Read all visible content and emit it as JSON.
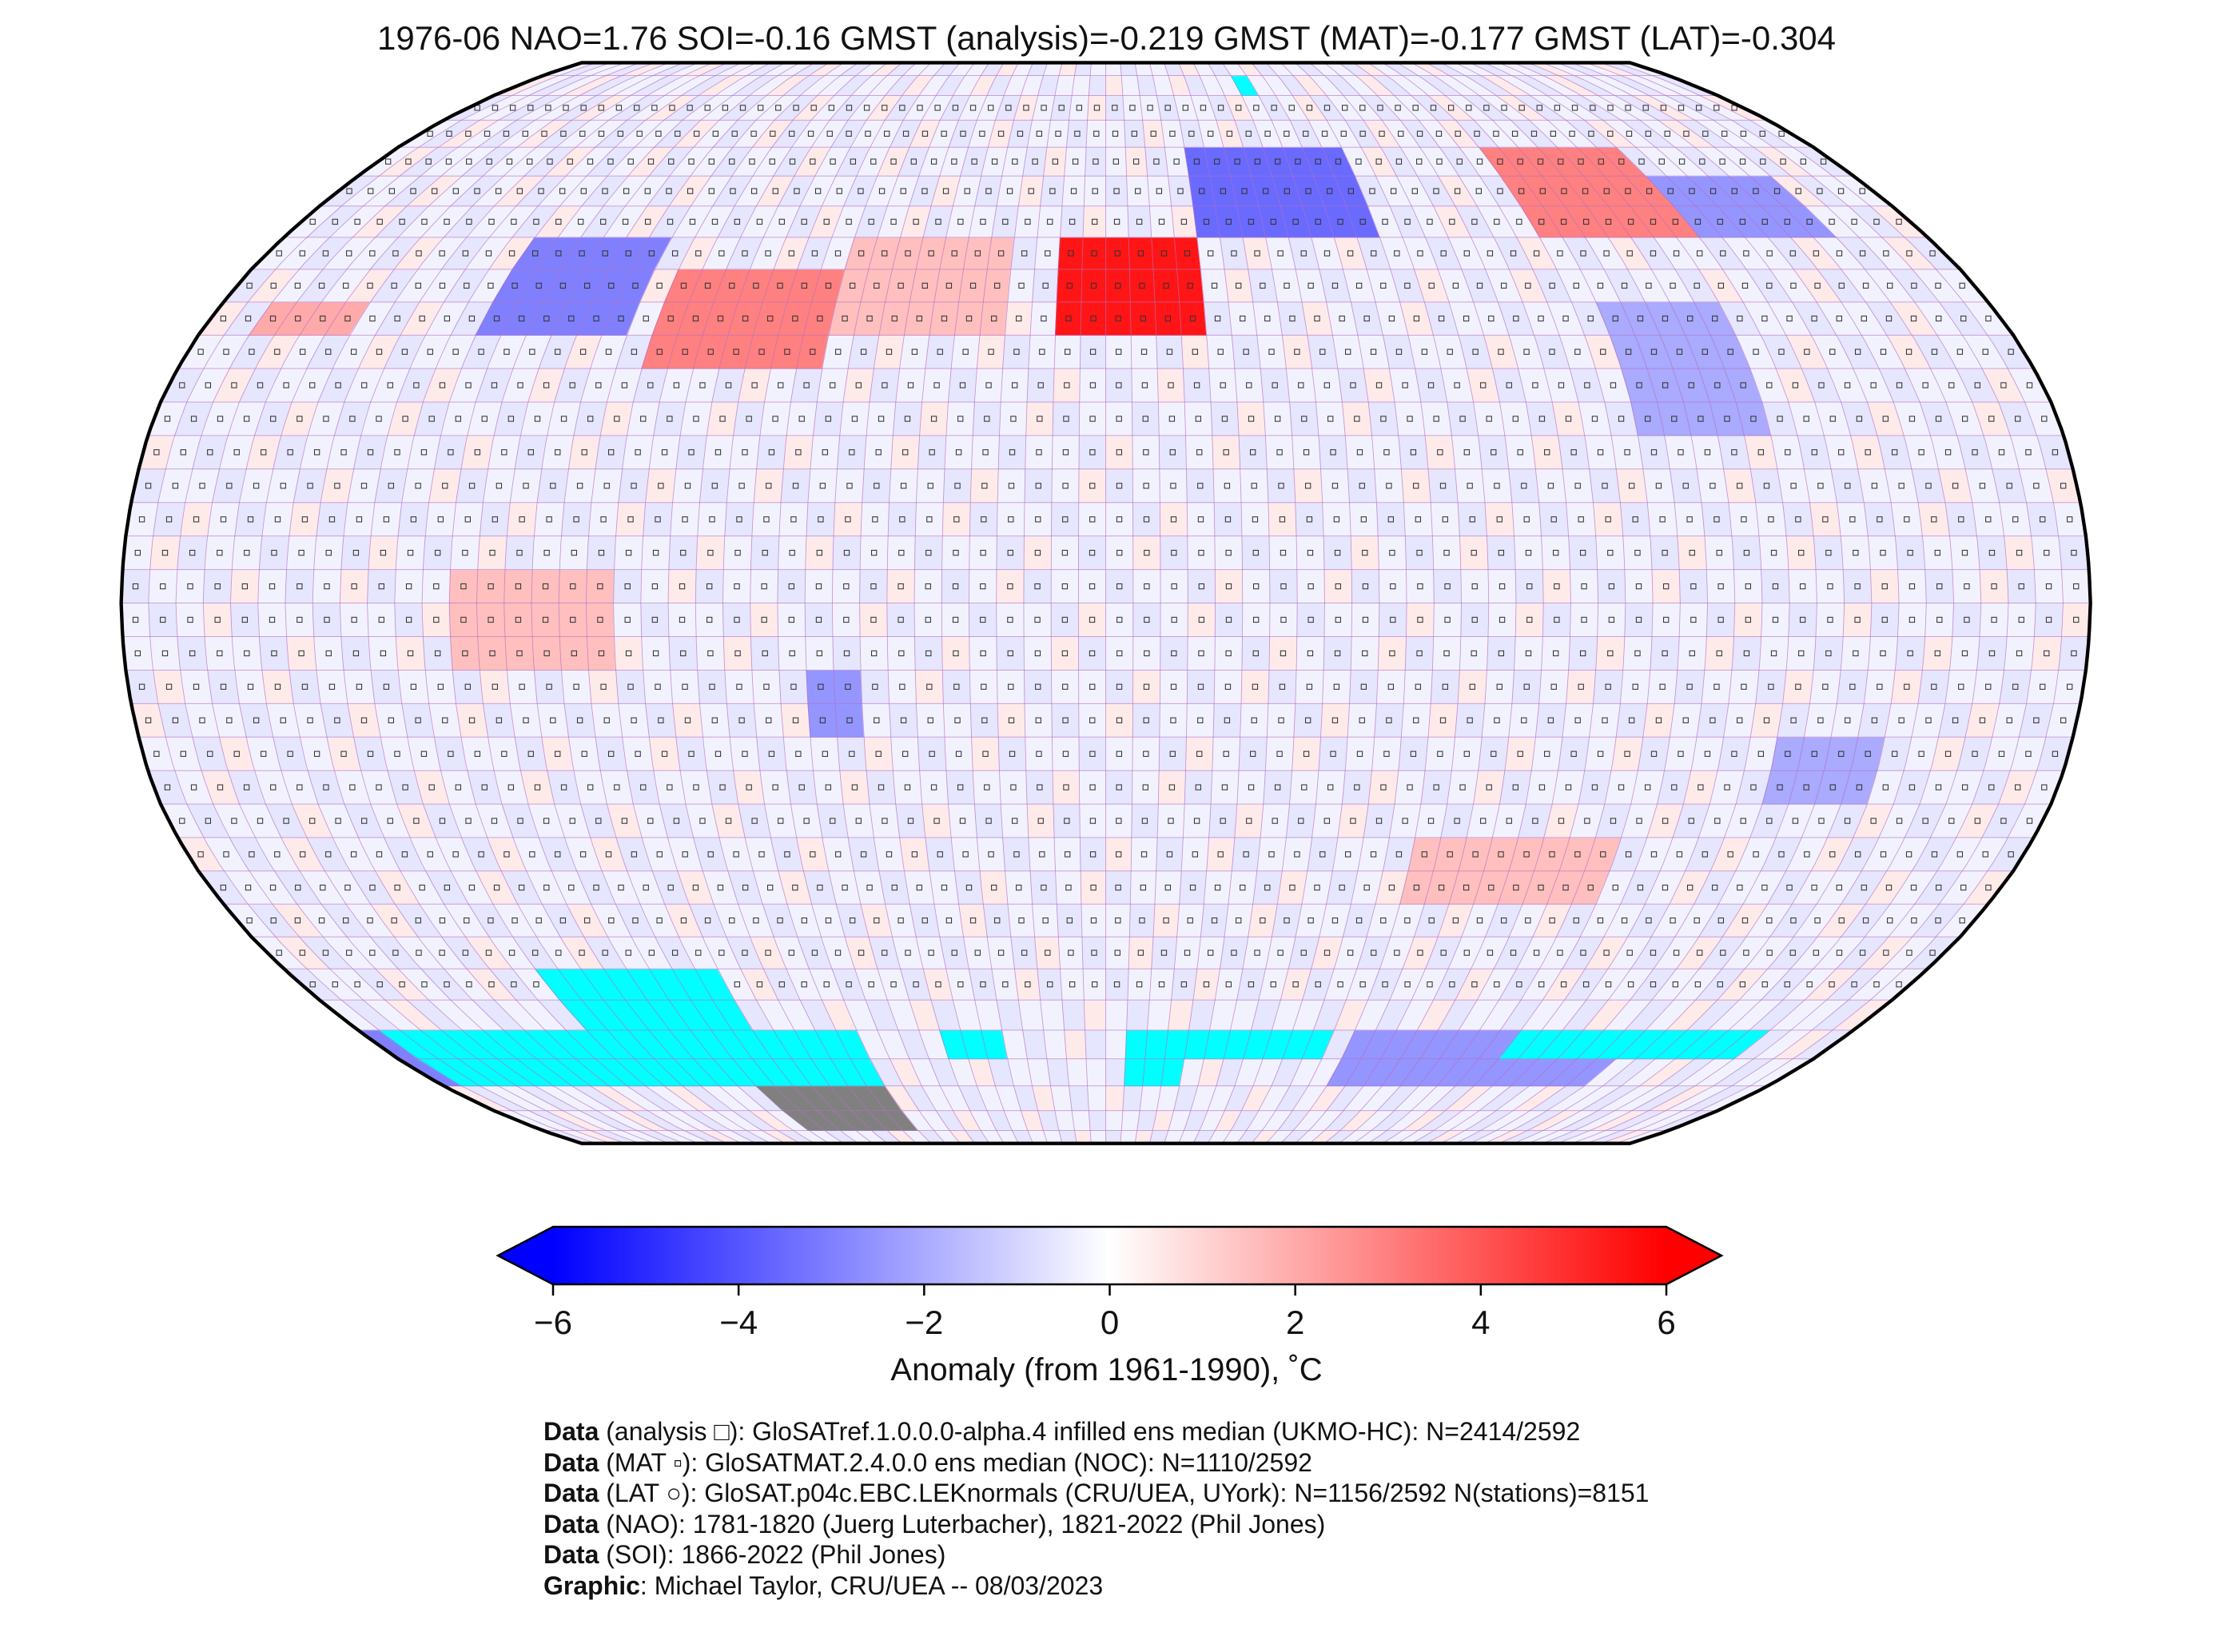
{
  "title": "1976-06 NAO=1.76 SOI=-0.16 GMST (analysis)=-0.219 GMST (MAT)=-0.177 GMST (LAT)=-0.304",
  "map": {
    "projection": "Robinson",
    "grid": "5x5 degree cells",
    "no_data_color": "#00ffff",
    "masked_color": "#808080",
    "anomaly_regions": [
      {
        "name": "Western Europe",
        "lon": [
          -10,
          20
        ],
        "lat": [
          40,
          55
        ],
        "anomaly": 5.5
      },
      {
        "name": "Eastern North America",
        "lon": [
          -90,
          -55
        ],
        "lat": [
          35,
          50
        ],
        "anomaly": 3.0
      },
      {
        "name": "North Atlantic",
        "lon": [
          -55,
          -20
        ],
        "lat": [
          40,
          55
        ],
        "anomaly": 1.5
      },
      {
        "name": "Central Siberia",
        "lon": [
          95,
          130
        ],
        "lat": [
          55,
          70
        ],
        "anomaly": 3.0
      },
      {
        "name": "Western North America",
        "lon": [
          -125,
          -95
        ],
        "lat": [
          40,
          55
        ],
        "anomaly": -3.0
      },
      {
        "name": "Scandinavia and Western Russia",
        "lon": [
          20,
          60
        ],
        "lat": [
          55,
          70
        ],
        "anomaly": -3.5
      },
      {
        "name": "Eastern Siberia",
        "lon": [
          130,
          160
        ],
        "lat": [
          55,
          65
        ],
        "anomaly": -2.5
      },
      {
        "name": "Eastern Asia",
        "lon": [
          100,
          125
        ],
        "lat": [
          25,
          45
        ],
        "anomaly": -2.0
      },
      {
        "name": "Central Australia",
        "lon": [
          125,
          145
        ],
        "lat": [
          -30,
          -20
        ],
        "anomaly": -2.0
      },
      {
        "name": "Central South America",
        "lon": [
          -55,
          -45
        ],
        "lat": [
          -20,
          -10
        ],
        "anomaly": -2.5
      },
      {
        "name": "North Pacific",
        "lon": [
          -170,
          -150
        ],
        "lat": [
          40,
          45
        ],
        "anomaly": 2.0
      },
      {
        "name": "Tropical Eastern Pacific",
        "lon": [
          -120,
          -90
        ],
        "lat": [
          -10,
          5
        ],
        "anomaly": 1.5
      },
      {
        "name": "Southern Indian Ocean",
        "lon": [
          60,
          100
        ],
        "lat": [
          -45,
          -35
        ],
        "anomaly": 1.5
      },
      {
        "name": "Antarctic coast (Pacific sector)",
        "lon": [
          -180,
          -120
        ],
        "lat": [
          -75,
          -65
        ],
        "anomaly": -3.0
      },
      {
        "name": "Antarctic coast (Indian sector)",
        "lon": [
          60,
          130
        ],
        "lat": [
          -75,
          -65
        ],
        "anomaly": -2.5
      }
    ],
    "no_data_regions": [
      {
        "lon": [
          -125,
          -85
        ],
        "lat": [
          -65,
          -55
        ]
      },
      {
        "lon": [
          -175,
          -60
        ],
        "lat": [
          -75,
          -65
        ]
      },
      {
        "lon": [
          -40,
          -25
        ],
        "lat": [
          -70,
          -65
        ]
      },
      {
        "lon": [
          5,
          20
        ],
        "lat": [
          -75,
          -65
        ]
      },
      {
        "lon": [
          20,
          55
        ],
        "lat": [
          -70,
          -65
        ]
      },
      {
        "lon": [
          100,
          160
        ],
        "lat": [
          -70,
          -65
        ]
      },
      {
        "lon": [
          40,
          45
        ],
        "lat": [
          80,
          85
        ]
      }
    ],
    "masked_regions": [
      {
        "lon": [
          -95,
          -60
        ],
        "lat": [
          -85,
          -75
        ]
      }
    ]
  },
  "colorbar": {
    "min": -6,
    "max": 6,
    "colors": [
      "#0000ff",
      "#ffffff",
      "#ff0000"
    ],
    "ticks": [
      "−6",
      "−4",
      "−2",
      "0",
      "2",
      "4",
      "6"
    ],
    "tick_values": [
      -6,
      -4,
      -2,
      0,
      2,
      4,
      6
    ],
    "label": "Anomaly (from 1961-1990), ˚C",
    "extend": "both"
  },
  "credits": [
    {
      "bold": "Data",
      "text": " (analysis □): GloSATref.1.0.0.0-alpha.4 infilled ens median (UKMO-HC): N=2414/2592"
    },
    {
      "bold": "Data",
      "text": " (MAT ▫): GloSATMAT.2.4.0.0 ens median (NOC): N=1110/2592"
    },
    {
      "bold": "Data",
      "text": " (LAT ○): GloSAT.p04c.EBC.LEKnormals (CRU/UEA, UYork): N=1156/2592 N(stations)=8151"
    },
    {
      "bold": "Data",
      "text": " (NAO): 1781-1820 (Juerg Luterbacher), 1821-2022 (Phil Jones)"
    },
    {
      "bold": "Data",
      "text": " (SOI): 1866-2022 (Phil Jones)"
    },
    {
      "bold": "Graphic",
      "text": ": Michael Taylor, CRU/UEA -- 08/03/2023"
    }
  ]
}
